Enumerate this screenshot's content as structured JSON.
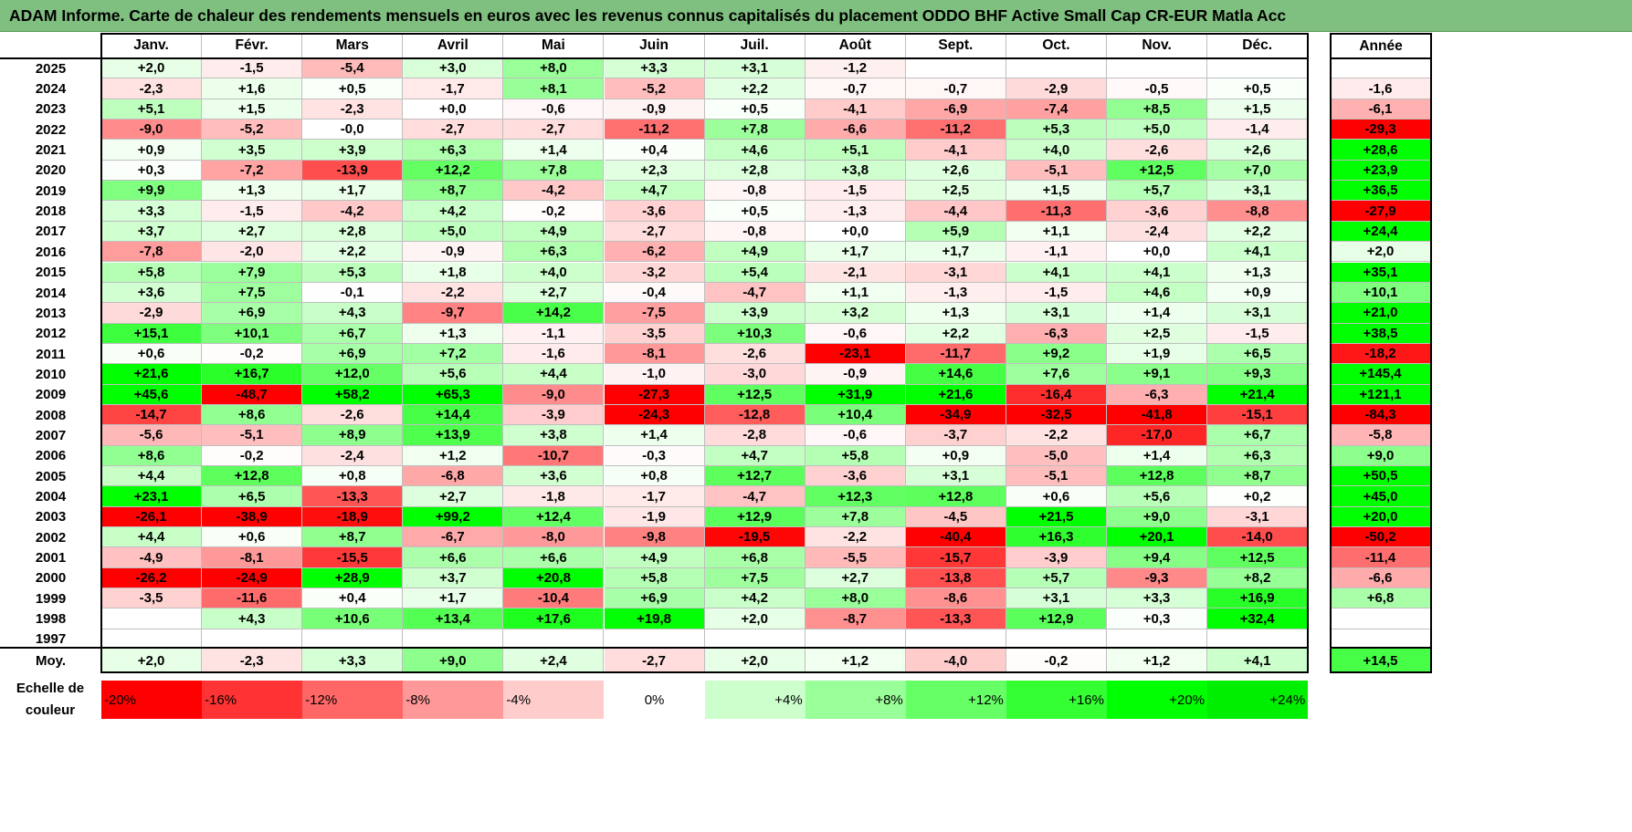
{
  "title": "ADAM Informe. Carte de chaleur des rendements mensuels en euros avec les revenus connus capitalisés du placement ODDO BHF Active Small Cap CR-EUR Matla Acc",
  "chart_data": {
    "type": "heatmap",
    "months": [
      "Janv.",
      "Févr.",
      "Mars",
      "Avril",
      "Mai",
      "Juin",
      "Juil.",
      "Août",
      "Sept.",
      "Oct.",
      "Nov.",
      "Déc."
    ],
    "annual_label": "Année",
    "rows": [
      {
        "year": "2025",
        "values": [
          "+2,0",
          "-1,5",
          "-5,4",
          "+3,0",
          "+8,0",
          "+3,3",
          "+3,1",
          "-1,2",
          "",
          "",
          "",
          ""
        ],
        "annual": ""
      },
      {
        "year": "2024",
        "values": [
          "-2,3",
          "+1,6",
          "+0,5",
          "-1,7",
          "+8,1",
          "-5,2",
          "+2,2",
          "-0,7",
          "-0,7",
          "-2,9",
          "-0,5",
          "+0,5"
        ],
        "annual": "-1,6"
      },
      {
        "year": "2023",
        "values": [
          "+5,1",
          "+1,5",
          "-2,3",
          "+0,0",
          "-0,6",
          "-0,9",
          "+0,5",
          "-4,1",
          "-6,9",
          "-7,4",
          "+8,5",
          "+1,5"
        ],
        "annual": "-6,1"
      },
      {
        "year": "2022",
        "values": [
          "-9,0",
          "-5,2",
          "-0,0",
          "-2,7",
          "-2,7",
          "-11,2",
          "+7,8",
          "-6,6",
          "-11,2",
          "+5,3",
          "+5,0",
          "-1,4"
        ],
        "annual": "-29,3"
      },
      {
        "year": "2021",
        "values": [
          "+0,9",
          "+3,5",
          "+3,9",
          "+6,3",
          "+1,4",
          "+0,4",
          "+4,6",
          "+5,1",
          "-4,1",
          "+4,0",
          "-2,6",
          "+2,6"
        ],
        "annual": "+28,6"
      },
      {
        "year": "2020",
        "values": [
          "+0,3",
          "-7,2",
          "-13,9",
          "+12,2",
          "+7,8",
          "+2,3",
          "+2,8",
          "+3,8",
          "+2,6",
          "-5,1",
          "+12,5",
          "+7,0"
        ],
        "annual": "+23,9"
      },
      {
        "year": "2019",
        "values": [
          "+9,9",
          "+1,3",
          "+1,7",
          "+8,7",
          "-4,2",
          "+4,7",
          "-0,8",
          "-1,5",
          "+2,5",
          "+1,5",
          "+5,7",
          "+3,1"
        ],
        "annual": "+36,5"
      },
      {
        "year": "2018",
        "values": [
          "+3,3",
          "-1,5",
          "-4,2",
          "+4,2",
          "-0,2",
          "-3,6",
          "+0,5",
          "-1,3",
          "-4,4",
          "-11,3",
          "-3,6",
          "-8,8"
        ],
        "annual": "-27,9"
      },
      {
        "year": "2017",
        "values": [
          "+3,7",
          "+2,7",
          "+2,8",
          "+5,0",
          "+4,9",
          "-2,7",
          "-0,8",
          "+0,0",
          "+5,9",
          "+1,1",
          "-2,4",
          "+2,2"
        ],
        "annual": "+24,4"
      },
      {
        "year": "2016",
        "values": [
          "-7,8",
          "-2,0",
          "+2,2",
          "-0,9",
          "+6,3",
          "-6,2",
          "+4,9",
          "+1,7",
          "+1,7",
          "-1,1",
          "+0,0",
          "+4,1"
        ],
        "annual": "+2,0"
      },
      {
        "year": "2015",
        "values": [
          "+5,8",
          "+7,9",
          "+5,3",
          "+1,8",
          "+4,0",
          "-3,2",
          "+5,4",
          "-2,1",
          "-3,1",
          "+4,1",
          "+4,1",
          "+1,3"
        ],
        "annual": "+35,1"
      },
      {
        "year": "2014",
        "values": [
          "+3,6",
          "+7,5",
          "-0,1",
          "-2,2",
          "+2,7",
          "-0,4",
          "-4,7",
          "+1,1",
          "-1,3",
          "-1,5",
          "+4,6",
          "+0,9"
        ],
        "annual": "+10,1"
      },
      {
        "year": "2013",
        "values": [
          "-2,9",
          "+6,9",
          "+4,3",
          "-9,7",
          "+14,2",
          "-7,5",
          "+3,9",
          "+3,2",
          "+1,3",
          "+3,1",
          "+1,4",
          "+3,1"
        ],
        "annual": "+21,0"
      },
      {
        "year": "2012",
        "values": [
          "+15,1",
          "+10,1",
          "+6,7",
          "+1,3",
          "-1,1",
          "-3,5",
          "+10,3",
          "-0,6",
          "+2,2",
          "-6,3",
          "+2,5",
          "-1,5"
        ],
        "annual": "+38,5"
      },
      {
        "year": "2011",
        "values": [
          "+0,6",
          "-0,2",
          "+6,9",
          "+7,2",
          "-1,6",
          "-8,1",
          "-2,6",
          "-23,1",
          "-11,7",
          "+9,2",
          "+1,9",
          "+6,5"
        ],
        "annual": "-18,2"
      },
      {
        "year": "2010",
        "values": [
          "+21,6",
          "+16,7",
          "+12,0",
          "+5,6",
          "+4,4",
          "-1,0",
          "-3,0",
          "-0,9",
          "+14,6",
          "+7,6",
          "+9,1",
          "+9,3"
        ],
        "annual": "+145,4"
      },
      {
        "year": "2009",
        "values": [
          "+45,6",
          "-48,7",
          "+58,2",
          "+65,3",
          "-9,0",
          "-27,3",
          "+12,5",
          "+31,9",
          "+21,6",
          "-16,4",
          "-6,3",
          "+21,4"
        ],
        "annual": "+121,1"
      },
      {
        "year": "2008",
        "values": [
          "-14,7",
          "+8,6",
          "-2,6",
          "+14,4",
          "-3,9",
          "-24,3",
          "-12,8",
          "+10,4",
          "-34,9",
          "-32,5",
          "-41,8",
          "-15,1"
        ],
        "annual": "-84,3"
      },
      {
        "year": "2007",
        "values": [
          "-5,6",
          "-5,1",
          "+8,9",
          "+13,9",
          "+3,8",
          "+1,4",
          "-2,8",
          "-0,6",
          "-3,7",
          "-2,2",
          "-17,0",
          "+6,7"
        ],
        "annual": "-5,8"
      },
      {
        "year": "2006",
        "values": [
          "+8,6",
          "-0,2",
          "-2,4",
          "+1,2",
          "-10,7",
          "-0,3",
          "+4,7",
          "+5,8",
          "+0,9",
          "-5,0",
          "+1,4",
          "+6,3"
        ],
        "annual": "+9,0"
      },
      {
        "year": "2005",
        "values": [
          "+4,4",
          "+12,8",
          "+0,8",
          "-6,8",
          "+3,6",
          "+0,8",
          "+12,7",
          "-3,6",
          "+3,1",
          "-5,1",
          "+12,8",
          "+8,7"
        ],
        "annual": "+50,5"
      },
      {
        "year": "2004",
        "values": [
          "+23,1",
          "+6,5",
          "-13,3",
          "+2,7",
          "-1,8",
          "-1,7",
          "-4,7",
          "+12,3",
          "+12,8",
          "+0,6",
          "+5,6",
          "+0,2"
        ],
        "annual": "+45,0"
      },
      {
        "year": "2003",
        "values": [
          "-26,1",
          "-38,9",
          "-18,9",
          "+99,2",
          "+12,4",
          "-1,9",
          "+12,9",
          "+7,8",
          "-4,5",
          "+21,5",
          "+9,0",
          "-3,1"
        ],
        "annual": "+20,0"
      },
      {
        "year": "2002",
        "values": [
          "+4,4",
          "+0,6",
          "+8,7",
          "-6,7",
          "-8,0",
          "-9,8",
          "-19,5",
          "-2,2",
          "-40,4",
          "+16,3",
          "+20,1",
          "-14,0"
        ],
        "annual": "-50,2"
      },
      {
        "year": "2001",
        "values": [
          "-4,9",
          "-8,1",
          "-15,5",
          "+6,6",
          "+6,6",
          "+4,9",
          "+6,8",
          "-5,5",
          "-15,7",
          "-3,9",
          "+9,4",
          "+12,5"
        ],
        "annual": "-11,4"
      },
      {
        "year": "2000",
        "values": [
          "-26,2",
          "-24,9",
          "+28,9",
          "+3,7",
          "+20,8",
          "+5,8",
          "+7,5",
          "+2,7",
          "-13,8",
          "+5,7",
          "-9,3",
          "+8,2"
        ],
        "annual": "-6,6"
      },
      {
        "year": "1999",
        "values": [
          "-3,5",
          "-11,6",
          "+0,4",
          "+1,7",
          "-10,4",
          "+6,9",
          "+4,2",
          "+8,0",
          "-8,6",
          "+3,1",
          "+3,3",
          "+16,9"
        ],
        "annual": "+6,8"
      },
      {
        "year": "1998",
        "values": [
          "",
          "+4,3",
          "+10,6",
          "+13,4",
          "+17,6",
          "+19,8",
          "+2,0",
          "-8,7",
          "-13,3",
          "+12,9",
          "+0,3",
          "+32,4"
        ],
        "annual": ""
      },
      {
        "year": "1997",
        "values": [
          "",
          "",
          "",
          "",
          "",
          "",
          "",
          "",
          "",
          "",
          "",
          ""
        ],
        "annual": ""
      }
    ],
    "average": {
      "label": "Moy.",
      "values": [
        "+2,0",
        "-2,3",
        "+3,3",
        "+9,0",
        "+2,4",
        "-2,7",
        "+2,0",
        "+1,2",
        "-4,0",
        "-0,2",
        "+1,2",
        "+4,1"
      ],
      "annual": "+14,5"
    },
    "color_scale": {
      "label": "Echelle de couleur",
      "steps": [
        {
          "label": "-20%",
          "color": "#ff0000"
        },
        {
          "label": "-16%",
          "color": "#ff3333"
        },
        {
          "label": "-12%",
          "color": "#ff6666"
        },
        {
          "label": "-8%",
          "color": "#ff9999"
        },
        {
          "label": "-4%",
          "color": "#ffcccc"
        },
        {
          "label": "0%",
          "color": "#ffffff"
        },
        {
          "label": "+4%",
          "color": "#ccffcc"
        },
        {
          "label": "+8%",
          "color": "#99ff99"
        },
        {
          "label": "+12%",
          "color": "#66ff66"
        },
        {
          "label": "+16%",
          "color": "#33ff33"
        },
        {
          "label": "+20%",
          "color": "#00ff00"
        },
        {
          "label": "+24%",
          "color": "#00ee00"
        }
      ]
    }
  }
}
